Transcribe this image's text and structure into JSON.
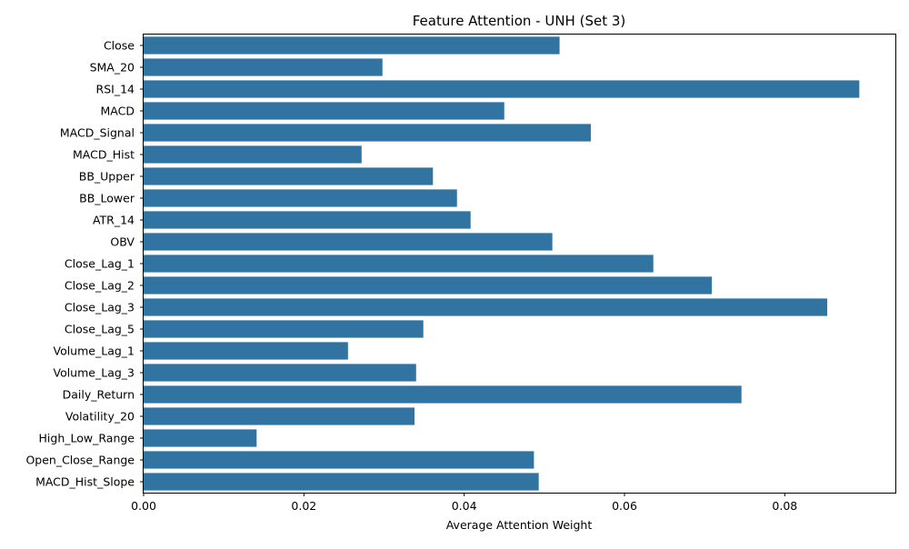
{
  "chart_data": {
    "type": "bar",
    "orientation": "horizontal",
    "title": "Feature Attention - UNH (Set 3)",
    "xlabel": "Average Attention Weight",
    "ylabel": "",
    "xlim": [
      0,
      0.0938
    ],
    "x_ticks": [
      "0.00",
      "0.02",
      "0.04",
      "0.06",
      "0.08"
    ],
    "x_tick_values": [
      0,
      0.02,
      0.04,
      0.06,
      0.08
    ],
    "grid": false,
    "bar_color": "#3274a1",
    "categories": [
      "Close",
      "SMA_20",
      "RSI_14",
      "MACD",
      "MACD_Signal",
      "MACD_Hist",
      "BB_Upper",
      "BB_Lower",
      "ATR_14",
      "OBV",
      "Close_Lag_1",
      "Close_Lag_2",
      "Close_Lag_3",
      "Close_Lag_5",
      "Volume_Lag_1",
      "Volume_Lag_3",
      "Daily_Return",
      "Volatility_20",
      "High_Low_Range",
      "Open_Close_Range",
      "MACD_Hist_Slope"
    ],
    "values": [
      0.0519,
      0.0298,
      0.0893,
      0.045,
      0.0558,
      0.0272,
      0.0361,
      0.0391,
      0.0408,
      0.051,
      0.0636,
      0.0709,
      0.0853,
      0.0349,
      0.0255,
      0.034,
      0.0746,
      0.0338,
      0.0141,
      0.0487,
      0.0493
    ]
  }
}
